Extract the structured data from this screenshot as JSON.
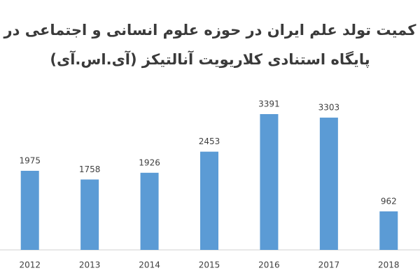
{
  "chart_data": {
    "type": "bar",
    "title": [
      "کمیت تولد علم ایران در حوزه علوم انسانی و اجتماعی در",
      "پایگاه استنادی کلاریویت آنالتیکز (آی.اس.آی)"
    ],
    "categories": [
      "2012",
      "2013",
      "2014",
      "2015",
      "2016",
      "2017",
      "2018"
    ],
    "values": [
      1975,
      1758,
      1926,
      2453,
      3391,
      3303,
      962
    ],
    "color": "#5b9bd5"
  }
}
